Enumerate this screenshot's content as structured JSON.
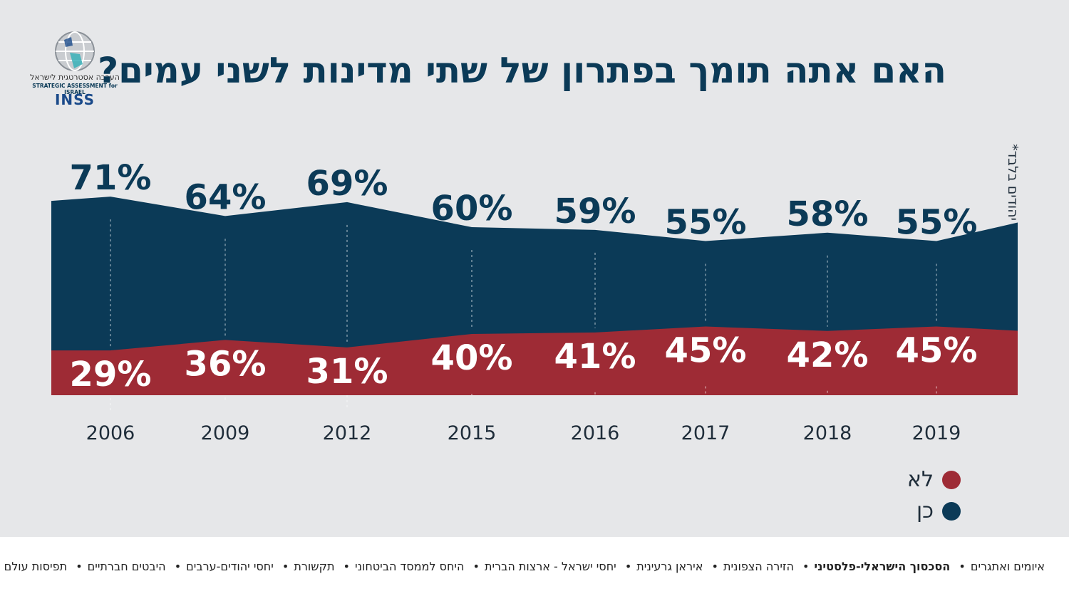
{
  "title": "האם אתה תומך בפתרון של שתי מדינות לשני עמים?",
  "logo": {
    "name_he": "הערכה אסטרטגית לישראל",
    "name_en": "STRATEGIC ASSESSMENT for ISRAEL",
    "brand": "INSS"
  },
  "side_note": "יהודים בלבד*",
  "colors": {
    "yes": "#0b3a57",
    "no": "#9e2b35",
    "background": "#e6e7e9",
    "title": "#0b3a57"
  },
  "chart_data": {
    "type": "area",
    "stacked": true,
    "categories": [
      "2006",
      "2009",
      "2012",
      "2015",
      "2016",
      "2017",
      "2018",
      "2019"
    ],
    "series": [
      {
        "name": "כן",
        "values": [
          71,
          64,
          69,
          60,
          59,
          55,
          58,
          55
        ],
        "labels": [
          "71%",
          "64%",
          "69%",
          "60%",
          "59%",
          "55%",
          "58%",
          "55%"
        ],
        "color": "#0b3a57"
      },
      {
        "name": "לא",
        "values": [
          29,
          36,
          31,
          40,
          41,
          45,
          42,
          45
        ],
        "labels": [
          "29%",
          "36%",
          "31%",
          "40%",
          "41%",
          "45%",
          "42%",
          "45%"
        ],
        "color": "#9e2b35"
      }
    ]
  },
  "legend": [
    {
      "label": "לא",
      "color": "#9e2b35"
    },
    {
      "label": "כן",
      "color": "#0b3a57"
    }
  ],
  "footer_topics": [
    {
      "label": "איומים ואתגרים",
      "active": false
    },
    {
      "label": "הסכסוך הישראלי-פלסטיני",
      "active": true
    },
    {
      "label": "הזירה הצפונית",
      "active": false
    },
    {
      "label": "איראן גרעינית",
      "active": false
    },
    {
      "label": "יחסי ישראל - ארצות הברית",
      "active": false
    },
    {
      "label": "היחס לממסד הביטחוני",
      "active": false
    },
    {
      "label": "תקשורת",
      "active": false
    },
    {
      "label": "יחסי יהודים-ערבים",
      "active": false
    },
    {
      "label": "היבטים חברתיים",
      "active": false
    },
    {
      "label": "תפיסות עולם וערכים",
      "active": false
    }
  ]
}
